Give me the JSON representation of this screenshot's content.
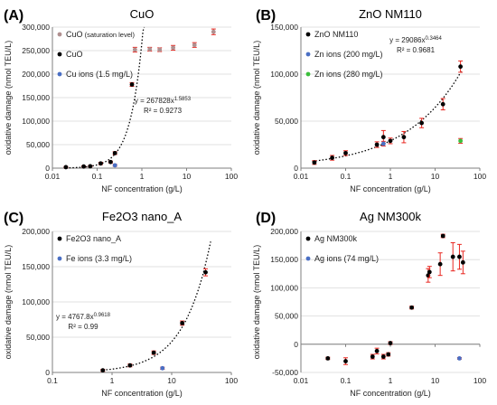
{
  "chart_data": [
    {
      "id": "A",
      "panel_label": "(A)",
      "type": "scatter",
      "title": "CuO",
      "xlabel": "NF concentration (g/L)",
      "ylabel": "oxidative damage (nmol TEU/L)",
      "xscale": "log",
      "xlim": [
        0.01,
        100
      ],
      "ylim": [
        0,
        300000
      ],
      "x_ticks": [
        0.01,
        0.1,
        1,
        10,
        100
      ],
      "x_tick_labels": [
        "0.01",
        "0.1",
        "1",
        "10",
        "100"
      ],
      "y_ticks": [
        0,
        50000,
        100000,
        150000,
        200000,
        250000,
        300000
      ],
      "y_tick_labels": [
        "0",
        "50,000",
        "100,000",
        "150,000",
        "200,000",
        "250,000",
        "300,000"
      ],
      "legend_placement": "top-left",
      "series": [
        {
          "name": "CuO",
          "name_suffix": " (saturation level)",
          "color": "#b09090",
          "points": [
            [
              0.7,
              252000
            ],
            [
              1.5,
              253000
            ],
            [
              2.5,
              252000
            ],
            [
              5,
              256000
            ],
            [
              15,
              262000
            ],
            [
              40,
              290000
            ]
          ],
          "err": [
            5000,
            4000,
            4000,
            5000,
            5000,
            6000
          ]
        },
        {
          "name": "CuO",
          "color": "#000000",
          "points": [
            [
              0.02,
              2000
            ],
            [
              0.05,
              3500
            ],
            [
              0.07,
              4000
            ],
            [
              0.12,
              10000
            ],
            [
              0.2,
              13000
            ],
            [
              0.25,
              32000
            ],
            [
              0.6,
              178000
            ]
          ],
          "err": [
            1500,
            1500,
            1500,
            2500,
            2000,
            3000,
            4000
          ]
        },
        {
          "name": "Cu ions (1.5 mg/L)",
          "color": "#4a6fc4",
          "points": [
            [
              0.25,
              6000
            ]
          ],
          "err": [
            2000
          ]
        }
      ],
      "trendline": {
        "a": 267828,
        "b": 1.5853,
        "x_range": [
          0.02,
          1.3
        ]
      },
      "equation": "y = 267828x",
      "equation_exp": "1.5853",
      "r2": "R² = 0.9273"
    },
    {
      "id": "B",
      "panel_label": "(B)",
      "type": "scatter",
      "title": "ZnO NM110",
      "xlabel": "NF concentration (g/L)",
      "ylabel": "oxidative damage (nmol TEU/L)",
      "xscale": "log",
      "xlim": [
        0.01,
        100
      ],
      "ylim": [
        0,
        150000
      ],
      "x_ticks": [
        0.01,
        0.1,
        1,
        10,
        100
      ],
      "x_tick_labels": [
        "0.01",
        "0.1",
        "1",
        "10",
        "100"
      ],
      "y_ticks": [
        0,
        50000,
        100000,
        150000
      ],
      "y_tick_labels": [
        "0",
        "50,000",
        "100,000",
        "150,000"
      ],
      "legend_placement": "top-left",
      "series": [
        {
          "name": "ZnO NM110",
          "color": "#000000",
          "points": [
            [
              0.02,
              6000
            ],
            [
              0.05,
              11000
            ],
            [
              0.1,
              16000
            ],
            [
              0.5,
              25000
            ],
            [
              0.7,
              33000
            ],
            [
              1,
              29000
            ],
            [
              2,
              33000
            ],
            [
              5,
              48000
            ],
            [
              15,
              68000
            ],
            [
              37,
              108000
            ]
          ],
          "err": [
            2000,
            2500,
            2500,
            3000,
            7000,
            3000,
            6000,
            5000,
            6000,
            6000
          ]
        },
        {
          "name": "Zn ions (200 mg/L)",
          "color": "#4a6fc4",
          "points": [
            [
              0.7,
              26000
            ]
          ],
          "err": [
            2500
          ]
        },
        {
          "name": "Zn ions (280 mg/L)",
          "color": "#3bbf3b",
          "points": [
            [
              37,
              29000
            ]
          ],
          "err": [
            2500
          ]
        }
      ],
      "trendline": {
        "a": 29086,
        "b": 0.3464,
        "x_range": [
          0.018,
          40
        ]
      },
      "equation": "y = 29086x",
      "equation_exp": "0.3464",
      "r2": "R² = 0.9681"
    },
    {
      "id": "C",
      "panel_label": "(C)",
      "type": "scatter",
      "title": "Fe2O3 nano_A",
      "xlabel": "NF concentration (g/L)",
      "ylabel": "oxidative damage (nmol TEU/L)",
      "xscale": "log",
      "xlim": [
        0.1,
        100
      ],
      "ylim": [
        0,
        200000
      ],
      "x_ticks": [
        0.1,
        1,
        10,
        100
      ],
      "x_tick_labels": [
        "0.1",
        "1",
        "10",
        "100"
      ],
      "y_ticks": [
        0,
        50000,
        100000,
        150000,
        200000
      ],
      "y_tick_labels": [
        "0",
        "50,000",
        "100,000",
        "150,000",
        "200,000"
      ],
      "legend_placement": "top-left",
      "series": [
        {
          "name": "Fe2O3 nano_A",
          "color": "#000000",
          "points": [
            [
              0.7,
              3000
            ],
            [
              2,
              10000
            ],
            [
              5,
              28000
            ],
            [
              15,
              70000
            ],
            [
              37,
              142000
            ]
          ],
          "err": [
            1500,
            2000,
            2500,
            3000,
            5000
          ]
        },
        {
          "name": "Fe ions (3.3 mg/L)",
          "color": "#4a6fc4",
          "points": [
            [
              7,
              6000
            ]
          ],
          "err": [
            1500
          ]
        }
      ],
      "trendline": {
        "a": 4767.8,
        "b": 0.9618,
        "x_range": [
          0.7,
          45
        ]
      },
      "equation": "y = 4767.8x",
      "equation_exp": "0.9618",
      "r2": "R² = 0.99"
    },
    {
      "id": "D",
      "panel_label": "(D)",
      "type": "scatter",
      "title": "Ag NM300k",
      "xlabel": "NF concentration (g/L)",
      "ylabel": "oxidative damage (nmol TEU/L)",
      "xscale": "log",
      "xlim": [
        0.01,
        100
      ],
      "ylim": [
        -50000,
        200000
      ],
      "x_ticks": [
        0.01,
        0.1,
        1,
        10,
        100
      ],
      "x_tick_labels": [
        "0.01",
        "0.1",
        "1",
        "10",
        "100"
      ],
      "y_ticks": [
        -50000,
        0,
        50000,
        100000,
        150000,
        200000
      ],
      "y_tick_labels": [
        "-50,000",
        "0",
        "50,000",
        "100,000",
        "150,000",
        "200,000"
      ],
      "legend_placement": "top-left",
      "series": [
        {
          "name": "Ag NM300k",
          "color": "#000000",
          "points": [
            [
              0.04,
              -25000
            ],
            [
              0.1,
              -30000
            ],
            [
              0.4,
              -22000
            ],
            [
              0.5,
              -12000
            ],
            [
              0.7,
              -22000
            ],
            [
              0.9,
              -18000
            ],
            [
              1,
              2000
            ],
            [
              3,
              65000
            ],
            [
              7,
              122000
            ],
            [
              7.5,
              128000
            ],
            [
              13,
              142000
            ],
            [
              15,
              192000
            ],
            [
              25,
              155000
            ],
            [
              35,
              155000
            ],
            [
              42,
              145000
            ]
          ],
          "err": [
            2000,
            6000,
            4000,
            5000,
            4000,
            3000,
            2500,
            2500,
            12000,
            10000,
            20000,
            3000,
            25000,
            22000,
            20000
          ]
        },
        {
          "name": "Ag ions (74 mg/L)",
          "color": "#4a6fc4",
          "points": [
            [
              35,
              -25000
            ]
          ],
          "err": [
            1500
          ]
        }
      ]
    }
  ]
}
